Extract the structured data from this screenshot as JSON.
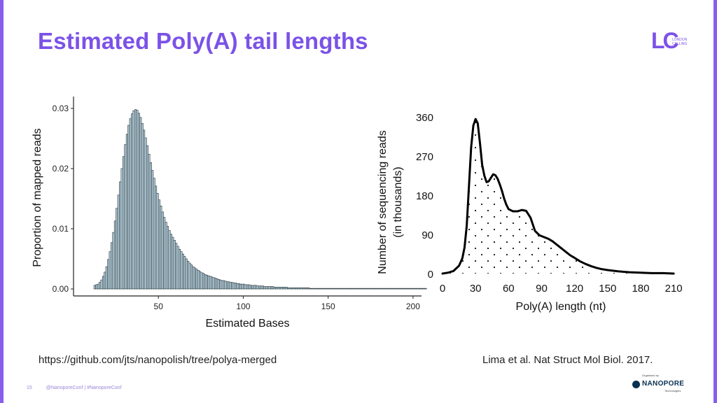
{
  "slide": {
    "title": "Estimated Poly(A) tail lengths",
    "logo_mark": "LC",
    "logo_text": "LONDON CALLING",
    "page_number": "15",
    "footer_tags": "@NanoporeConf | #NanoporeConf",
    "organised_by": "Organised by",
    "org_name": "NANOPORE",
    "org_sub": "Technologies",
    "ref_left": "https://github.com/jts/nanopolish/tree/polya-merged",
    "ref_right": "Lima et al. Nat Struct Mol Biol. 2017.",
    "colors": {
      "accent": "#7b52e8",
      "bar_fill": "#b7d0dc",
      "bar_edge": "#1f2a30"
    }
  },
  "chart_data": [
    {
      "type": "bar",
      "title": "",
      "xlabel": "Estimated Bases",
      "ylabel": "Proportion of mapped reads",
      "xlim": [
        0,
        205
      ],
      "ylim": [
        0,
        0.0315
      ],
      "xticks": [
        50,
        100,
        150,
        200
      ],
      "xtick_labels": [
        "50",
        "100",
        "150",
        "200"
      ],
      "yticks": [
        0,
        0.01,
        0.02,
        0.03
      ],
      "ytick_labels": [
        "0.00",
        "0.01",
        "0.02",
        "0.03"
      ],
      "bin_start": 12,
      "bin_width": 1,
      "values": [
        0.0006,
        0.0007,
        0.0008,
        0.0011,
        0.0015,
        0.0021,
        0.0028,
        0.0037,
        0.0049,
        0.0062,
        0.0077,
        0.0094,
        0.0113,
        0.0134,
        0.0156,
        0.0178,
        0.02,
        0.022,
        0.024,
        0.0257,
        0.0272,
        0.0283,
        0.0291,
        0.0296,
        0.0298,
        0.0297,
        0.0292,
        0.0285,
        0.0275,
        0.0264,
        0.0251,
        0.0238,
        0.0224,
        0.021,
        0.0197,
        0.0184,
        0.0171,
        0.0159,
        0.0148,
        0.0138,
        0.0128,
        0.0119,
        0.0111,
        0.0104,
        0.0097,
        0.0091,
        0.0086,
        0.0081,
        0.0076,
        0.0071,
        0.0066,
        0.0062,
        0.0058,
        0.0054,
        0.005,
        0.0046,
        0.0043,
        0.004,
        0.0037,
        0.0035,
        0.0033,
        0.0031,
        0.0029,
        0.0027,
        0.0026,
        0.0024,
        0.0023,
        0.0022,
        0.0021,
        0.002,
        0.0019,
        0.0018,
        0.0017,
        0.0016,
        0.0015,
        0.0014,
        0.0014,
        0.0013,
        0.0012,
        0.0012,
        0.0011,
        0.0011,
        0.001,
        0.001,
        0.0009,
        0.0009,
        0.0008,
        0.0008,
        0.0008,
        0.0007,
        0.0007,
        0.0007,
        0.0006,
        0.0006,
        0.0006,
        0.0006,
        0.0005,
        0.0005,
        0.0005,
        0.0005,
        0.0004,
        0.0004,
        0.0004,
        0.0004,
        0.0004,
        0.0004,
        0.0003,
        0.0003,
        0.0003,
        0.0003,
        0.0003,
        0.0003,
        0.0003,
        0.0003,
        0.0002,
        0.0002,
        0.0002,
        0.0002,
        0.0002,
        0.0002,
        0.0002,
        0.0002,
        0.0002,
        0.0002,
        0.0002,
        0.0002,
        0.0002,
        0.0001,
        0.0001,
        0.0001,
        0.0001,
        0.0001,
        0.0001,
        0.0001,
        0.0001,
        0.0001,
        0.0001,
        0.0001,
        0.0001,
        0.0001,
        0.0001,
        0.0001,
        0.0001,
        0.0001,
        0.0001,
        0.0001,
        0.0001,
        0.0001,
        0.0001,
        0.0001,
        0.0001,
        0.0001,
        0.0001,
        0.0001,
        0.0001,
        0.0001,
        0.0001,
        0.0001,
        0.0001,
        0.0001,
        0.0001,
        0.0001,
        0.0001,
        0.0001,
        0.0001,
        0.0001,
        0.0001,
        0.0001,
        0.0001,
        0.0001,
        0.0001,
        0.0001,
        0.0001,
        0.0001,
        0.0001,
        0.0001,
        0.0001,
        0.0001,
        0.0001,
        0.0001,
        0.0001,
        0.0001,
        0.0001,
        0.0001,
        0.0001,
        0.0001,
        0.0001,
        0.0001,
        0.0001,
        0.0001,
        0.0001,
        0.0001,
        0.0001,
        0.0001,
        0.0001,
        0.0001
      ]
    },
    {
      "type": "area",
      "title": "",
      "xlabel": "Poly(A) length (nt)",
      "ylabel": "Number of sequencing reads",
      "ylabel_line2": "(in thousands)",
      "xlim": [
        0,
        215
      ],
      "ylim": [
        0,
        360
      ],
      "xticks": [
        0,
        30,
        60,
        90,
        120,
        150,
        180,
        210
      ],
      "xtick_labels": [
        "0",
        "30",
        "60",
        "90",
        "120",
        "150",
        "180",
        "210"
      ],
      "yticks": [
        0,
        90,
        180,
        270,
        360
      ],
      "ytick_labels": [
        "0",
        "90",
        "180",
        "270",
        "360"
      ],
      "fill_pattern": "dotted",
      "x": [
        0,
        5,
        10,
        15,
        18,
        20,
        22,
        24,
        26,
        28,
        30,
        32,
        34,
        36,
        38,
        40,
        42,
        44,
        46,
        48,
        50,
        52,
        54,
        56,
        58,
        60,
        64,
        68,
        72,
        76,
        80,
        84,
        88,
        92,
        96,
        100,
        104,
        108,
        112,
        116,
        120,
        125,
        130,
        135,
        140,
        145,
        150,
        160,
        170,
        180,
        190,
        200,
        210
      ],
      "y": [
        0,
        2,
        6,
        18,
        35,
        60,
        110,
        200,
        290,
        340,
        355,
        345,
        300,
        250,
        225,
        210,
        212,
        220,
        228,
        226,
        218,
        205,
        190,
        172,
        158,
        148,
        143,
        143,
        146,
        144,
        128,
        98,
        88,
        84,
        80,
        74,
        66,
        58,
        50,
        42,
        36,
        28,
        22,
        17,
        13,
        10,
        8,
        5,
        3,
        2,
        1,
        1,
        0
      ]
    }
  ]
}
